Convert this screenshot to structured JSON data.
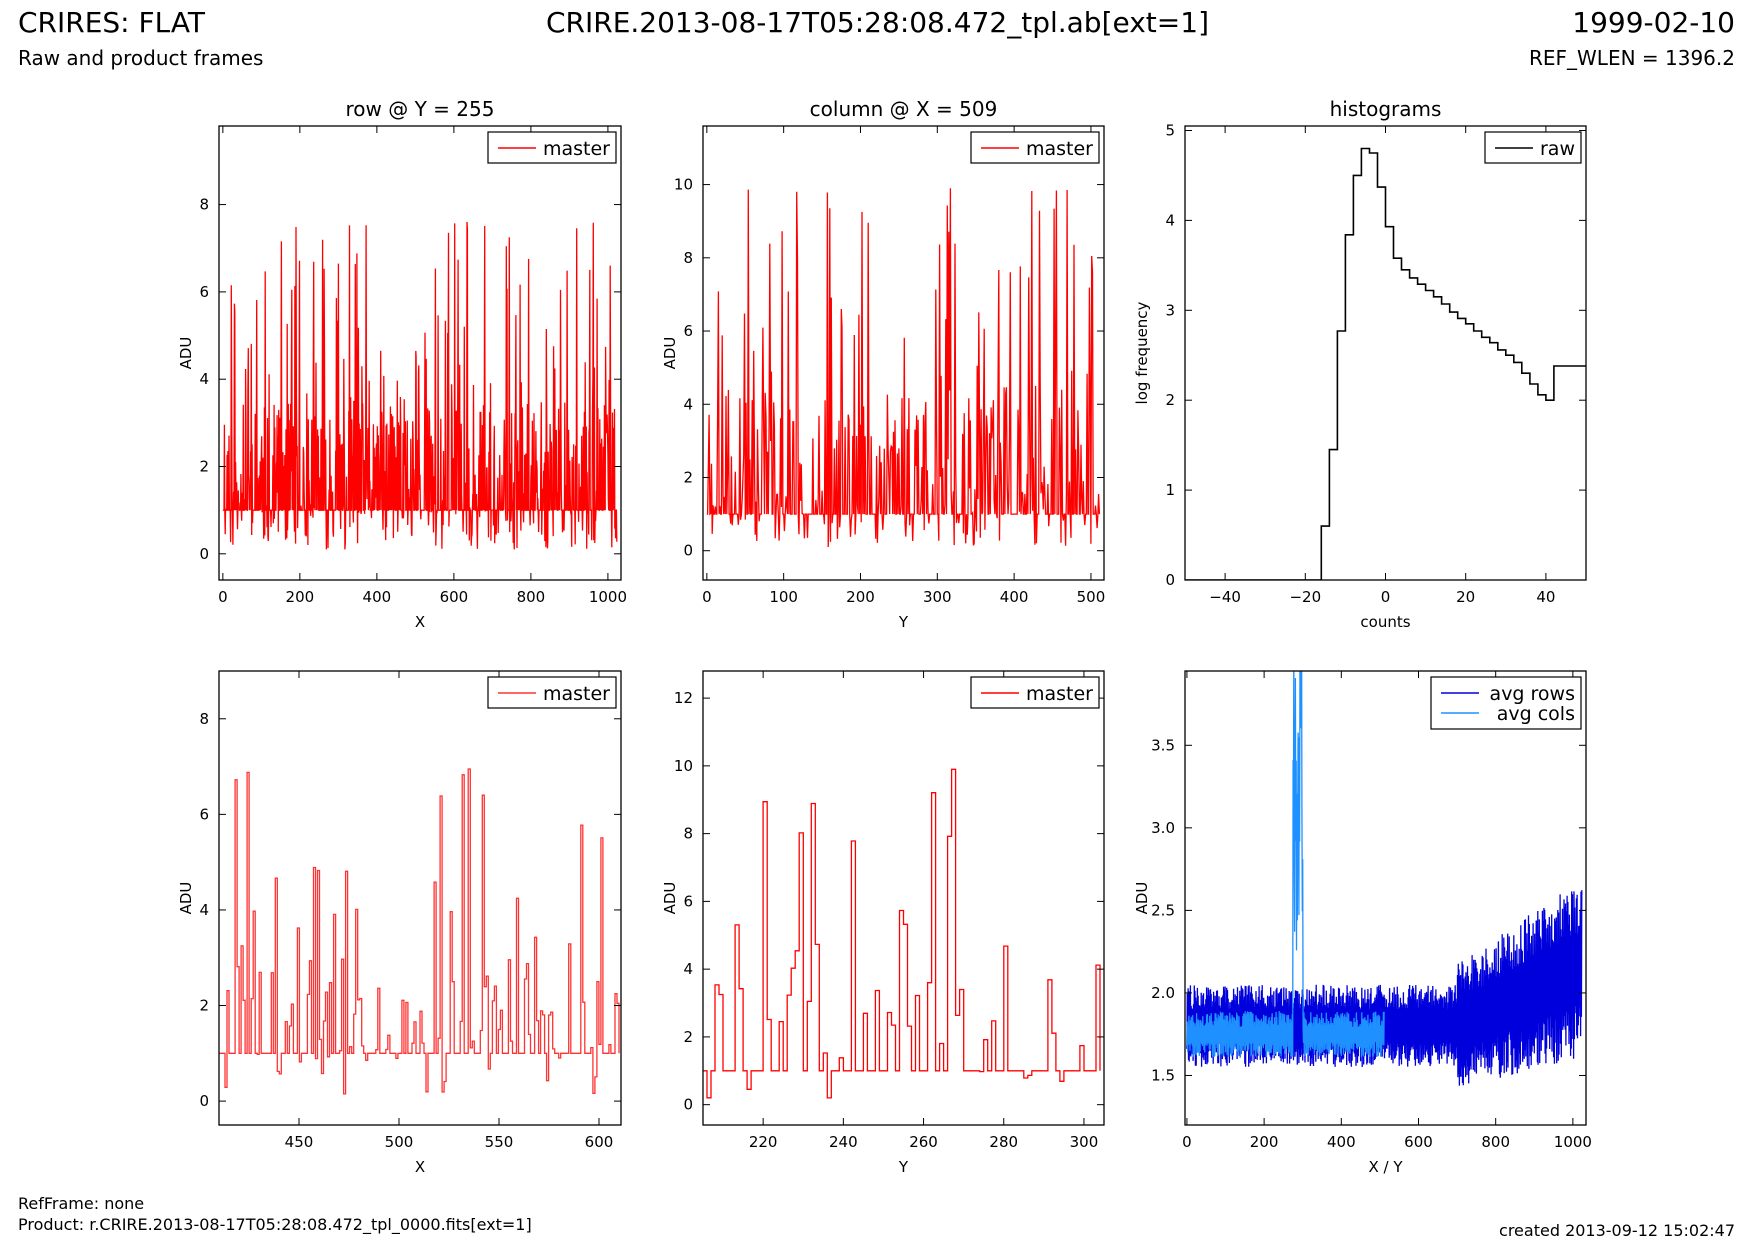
{
  "header": {
    "title_left": "CRIRES: FLAT",
    "title_center": "CRIRE.2013-08-17T05:28:08.472_tpl.ab[ext=1]",
    "title_right": "1999-02-10",
    "subtitle_left": "Raw and product frames",
    "subtitle_right": "REF_WLEN = 1396.2"
  },
  "footer": {
    "refframe": "RefFrame: none",
    "product": "Product: r.CRIRE.2013-08-17T05:28:08.472_tpl_0000.fits[ext=1]",
    "created": "created 2013-09-12 15:02:47"
  },
  "colors": {
    "master": "#ff0000",
    "raw": "#000000",
    "avg_rows": "#0000dd",
    "avg_cols": "#1e90ff"
  },
  "chart_data": [
    {
      "type": "line",
      "title": "row @ Y = 255",
      "xlabel": "X",
      "ylabel": "ADU",
      "xlim": [
        -10,
        1034
      ],
      "ylim": [
        -0.6,
        9.8
      ],
      "xticks": [
        0,
        200,
        400,
        600,
        800,
        1000
      ],
      "yticks": [
        0,
        2,
        4,
        6,
        8
      ],
      "legend": "top-right",
      "series": [
        {
          "name": "master",
          "color": "#ff0000",
          "kind": "noise",
          "x_range": [
            0,
            1024
          ],
          "n": 1024,
          "baseline": 1.0,
          "min": 0.1,
          "max": 7.6,
          "seed": 11
        }
      ]
    },
    {
      "type": "line",
      "title": "column @ X = 509",
      "xlabel": "Y",
      "ylabel": "ADU",
      "xlim": [
        -5,
        517
      ],
      "ylim": [
        -0.8,
        11.6
      ],
      "xticks": [
        0,
        100,
        200,
        300,
        400,
        500
      ],
      "yticks": [
        0,
        2,
        4,
        6,
        8,
        10
      ],
      "legend": "top-right",
      "series": [
        {
          "name": "master",
          "color": "#ff0000",
          "kind": "noise",
          "x_range": [
            0,
            512
          ],
          "n": 512,
          "baseline": 1.0,
          "min": 0.1,
          "max": 9.9,
          "seed": 23
        }
      ]
    },
    {
      "type": "line",
      "title": "histograms",
      "xlabel": "counts",
      "ylabel": "log frequency",
      "xlim": [
        -50,
        50
      ],
      "ylim": [
        0,
        5.05
      ],
      "xticks": [
        -40,
        -20,
        0,
        20,
        40
      ],
      "xtick_labels": [
        "−40",
        "−20",
        "0",
        "20",
        "40"
      ],
      "yticks": [
        0,
        1,
        2,
        3,
        4,
        5
      ],
      "legend": "top-right",
      "series": [
        {
          "name": "raw",
          "color": "#000000",
          "kind": "step",
          "x": [
            -50,
            -16,
            -14,
            -12,
            -10,
            -8,
            -6,
            -4,
            -2,
            0,
            2,
            4,
            6,
            8,
            10,
            12,
            14,
            16,
            18,
            20,
            22,
            24,
            26,
            28,
            30,
            32,
            34,
            36,
            38,
            40,
            42,
            44,
            46,
            48,
            50
          ],
          "y": [
            0,
            0.6,
            1.45,
            2.77,
            3.84,
            4.5,
            4.8,
            4.75,
            4.37,
            3.93,
            3.58,
            3.45,
            3.36,
            3.29,
            3.22,
            3.15,
            3.07,
            2.98,
            2.91,
            2.85,
            2.77,
            2.7,
            2.64,
            2.56,
            2.5,
            2.42,
            2.3,
            2.18,
            2.06,
            2.0,
            2.38,
            2.38,
            2.38,
            2.38,
            2.38
          ]
        }
      ]
    },
    {
      "type": "line",
      "title": "",
      "xlabel": "X",
      "ylabel": "ADU",
      "xlim": [
        410,
        611
      ],
      "ylim": [
        -0.5,
        9.0
      ],
      "xticks": [
        450,
        500,
        550,
        600
      ],
      "yticks": [
        0,
        2,
        4,
        6,
        8
      ],
      "legend": "top-right",
      "series": [
        {
          "name": "master",
          "color": "#ff3333",
          "kind": "steps",
          "x_range": [
            410,
            611
          ],
          "n": 200,
          "baseline": 1.0,
          "min": 0.15,
          "max": 6.95,
          "seed": 31
        }
      ]
    },
    {
      "type": "line",
      "title": "",
      "xlabel": "Y",
      "ylabel": "ADU",
      "xlim": [
        205,
        305
      ],
      "ylim": [
        -0.6,
        12.8
      ],
      "xticks": [
        220,
        240,
        260,
        280,
        300
      ],
      "yticks": [
        0,
        2,
        4,
        6,
        8,
        10,
        12
      ],
      "legend": "top-right",
      "series": [
        {
          "name": "master",
          "color": "#ff0000",
          "kind": "steps",
          "x_range": [
            205,
            305
          ],
          "n": 100,
          "baseline": 1.0,
          "min": 0.2,
          "max": 9.9,
          "seed": 47
        }
      ]
    },
    {
      "type": "line",
      "title": "",
      "xlabel": "X / Y",
      "ylabel": "ADU",
      "xlim": [
        -5,
        1034
      ],
      "ylim": [
        1.2,
        3.95
      ],
      "xticks": [
        0,
        200,
        400,
        600,
        800,
        1000
      ],
      "yticks": [
        1.5,
        2.0,
        2.5,
        3.0,
        3.5
      ],
      "ytick_labels": [
        "1.5",
        "2.0",
        "2.5",
        "3.0",
        "3.5"
      ],
      "legend": "top-right",
      "series": [
        {
          "name": "avg rows",
          "color": "#0000dd",
          "kind": "avgrows",
          "x_range": [
            0,
            1024
          ],
          "n": 1024,
          "baseline": 1.8,
          "min": 1.27,
          "max": 2.95,
          "seed": 59
        },
        {
          "name": "avg cols",
          "color": "#1e90ff",
          "kind": "avgcols",
          "x_range": [
            0,
            512
          ],
          "n": 512,
          "baseline": 1.75,
          "min": 1.45,
          "max": 3.95,
          "seed": 67
        }
      ]
    }
  ]
}
